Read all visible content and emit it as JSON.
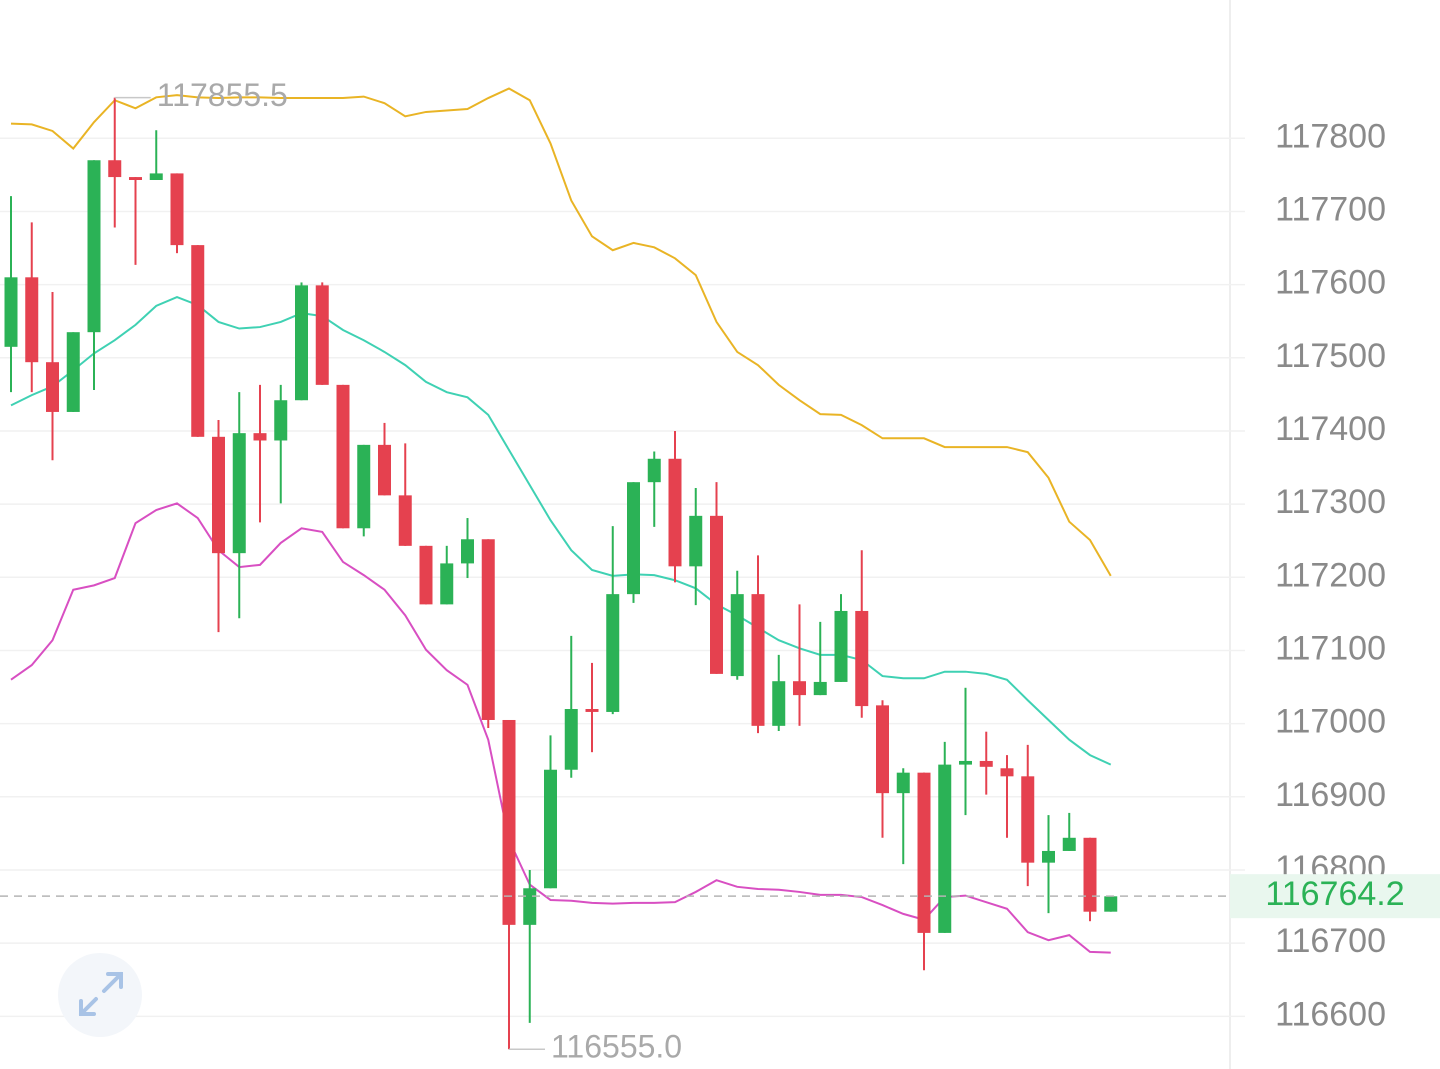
{
  "chart_data": {
    "type": "candlestick",
    "open": [
      117515,
      117610,
      117494,
      117426,
      117535,
      117770,
      117747,
      117743,
      117752,
      117654,
      117392,
      117233,
      117397,
      117387,
      117442,
      117599,
      117463,
      117267,
      117381,
      117312,
      117243,
      117163,
      117219,
      117252,
      117005,
      116725,
      116775,
      116937,
      117020,
      117016,
      117177,
      117330,
      117362,
      117215,
      117284,
      117065,
      117177,
      116997,
      117058,
      117039,
      117057,
      117154,
      117025,
      116905,
      116933,
      116714,
      116944,
      116949,
      116939,
      116928,
      116810,
      116826,
      116844,
      116743
    ],
    "high": [
      117721,
      117685,
      117590,
      117535,
      117770,
      117855.5,
      117747,
      117811,
      117752,
      117654,
      117415,
      117453,
      117463,
      117463,
      117603,
      117603,
      117463,
      117381,
      117411,
      117383,
      117243,
      117243,
      117281,
      117252,
      117005,
      116800,
      116984,
      117120,
      117083,
      117270,
      117330,
      117372,
      117400,
      117322,
      117330,
      117209,
      117230,
      117094,
      117163,
      117139,
      117177,
      117237,
      117032,
      116939,
      116933,
      116975,
      117049,
      116989,
      116957,
      116971,
      116875,
      116878,
      116844,
      116764
    ],
    "low": [
      117453,
      117453,
      117360,
      117426,
      117456,
      117678,
      117627,
      117743,
      117643,
      117392,
      117125,
      117144,
      117275,
      117301,
      117442,
      117463,
      117267,
      117256,
      117312,
      117243,
      117163,
      117163,
      117199,
      116994,
      116555,
      116591,
      116775,
      116926,
      116961,
      117013,
      117165,
      117269,
      117193,
      117162,
      117068,
      117060,
      116987,
      116990,
      116997,
      117039,
      117057,
      117008,
      116844,
      116808,
      116663,
      116714,
      116875,
      116903,
      116844,
      116778,
      116741,
      116826,
      116730,
      116743
    ],
    "close": [
      117610,
      117494,
      117426,
      117535,
      117770,
      117747,
      117743,
      117752,
      117654,
      117392,
      117233,
      117397,
      117387,
      117442,
      117599,
      117463,
      117267,
      117381,
      117312,
      117243,
      117163,
      117219,
      117252,
      117005,
      116725,
      116775,
      116937,
      117020,
      117016,
      117177,
      117330,
      117362,
      117215,
      117284,
      117068,
      117177,
      116997,
      117058,
      117039,
      117057,
      117154,
      117024,
      116905,
      116933,
      116714,
      116944,
      116949,
      116941,
      116928,
      116810,
      116826,
      116844,
      116743,
      116764
    ],
    "up_color": "#2bb256",
    "down_color": "#e5414f",
    "bands": [
      {
        "color": "#e9b425",
        "values": [
          117820,
          117819,
          117810,
          117786,
          117822,
          117852,
          117841,
          117856,
          117859,
          117856,
          117855,
          117856,
          117856,
          117855,
          117855,
          117855,
          117855,
          117857,
          117848,
          117830,
          117836,
          117838,
          117840,
          117855,
          117868,
          117852,
          117793,
          117715,
          117666,
          117647,
          117657,
          117651,
          117636,
          117613,
          117549,
          117508,
          117490,
          117463,
          117442,
          117423,
          117422,
          117408,
          117390,
          117390,
          117390,
          117378,
          117378,
          117378,
          117378,
          117371,
          117336,
          117276,
          117251,
          117202
        ]
      },
      {
        "color": "#3fd1b3",
        "values": [
          117435,
          117449,
          117461,
          117483,
          117506,
          117524,
          117545,
          117571,
          117583,
          117572,
          117549,
          117540,
          117542,
          117549,
          117561,
          117557,
          117538,
          117524,
          117508,
          117490,
          117467,
          117453,
          117446,
          117422,
          117374,
          117326,
          117278,
          117237,
          117210,
          117202,
          117204,
          117203,
          117196,
          117185,
          117163,
          117148,
          117131,
          117114,
          117103,
          117094,
          117094,
          117087,
          117065,
          117062,
          117062,
          117071,
          117071,
          117068,
          117060,
          117032,
          117005,
          116978,
          116957,
          116944
        ]
      },
      {
        "color": "#d84fc2",
        "values": [
          117060,
          117080,
          117114,
          117183,
          117189,
          117199,
          117274,
          117292,
          117301,
          117281,
          117237,
          117214,
          117217,
          117247,
          117267,
          117262,
          117221,
          117203,
          117183,
          117148,
          117101,
          117073,
          117053,
          116978,
          116841,
          116780,
          116759,
          116758,
          116755,
          116754,
          116755,
          116755,
          116756,
          116770,
          116786,
          116777,
          116774,
          116773,
          116770,
          116766,
          116766,
          116763,
          116752,
          116740,
          116732,
          116763,
          116765,
          116756,
          116747,
          116715,
          116704,
          116711,
          116688,
          116687
        ]
      }
    ],
    "ylim": [
      116528,
      117989
    ],
    "yticks": [
      116600,
      116700,
      116800,
      116900,
      117000,
      117100,
      117200,
      117300,
      117400,
      117500,
      117600,
      117700,
      117800
    ],
    "grid": true,
    "max_marker": {
      "value": 117855.5,
      "label": "117855.5"
    },
    "min_marker": {
      "value": 116555,
      "label": "116555.0"
    },
    "last_price": {
      "value": 116764.2,
      "label": "116764.2"
    },
    "last_price_color": "#2bb256"
  }
}
